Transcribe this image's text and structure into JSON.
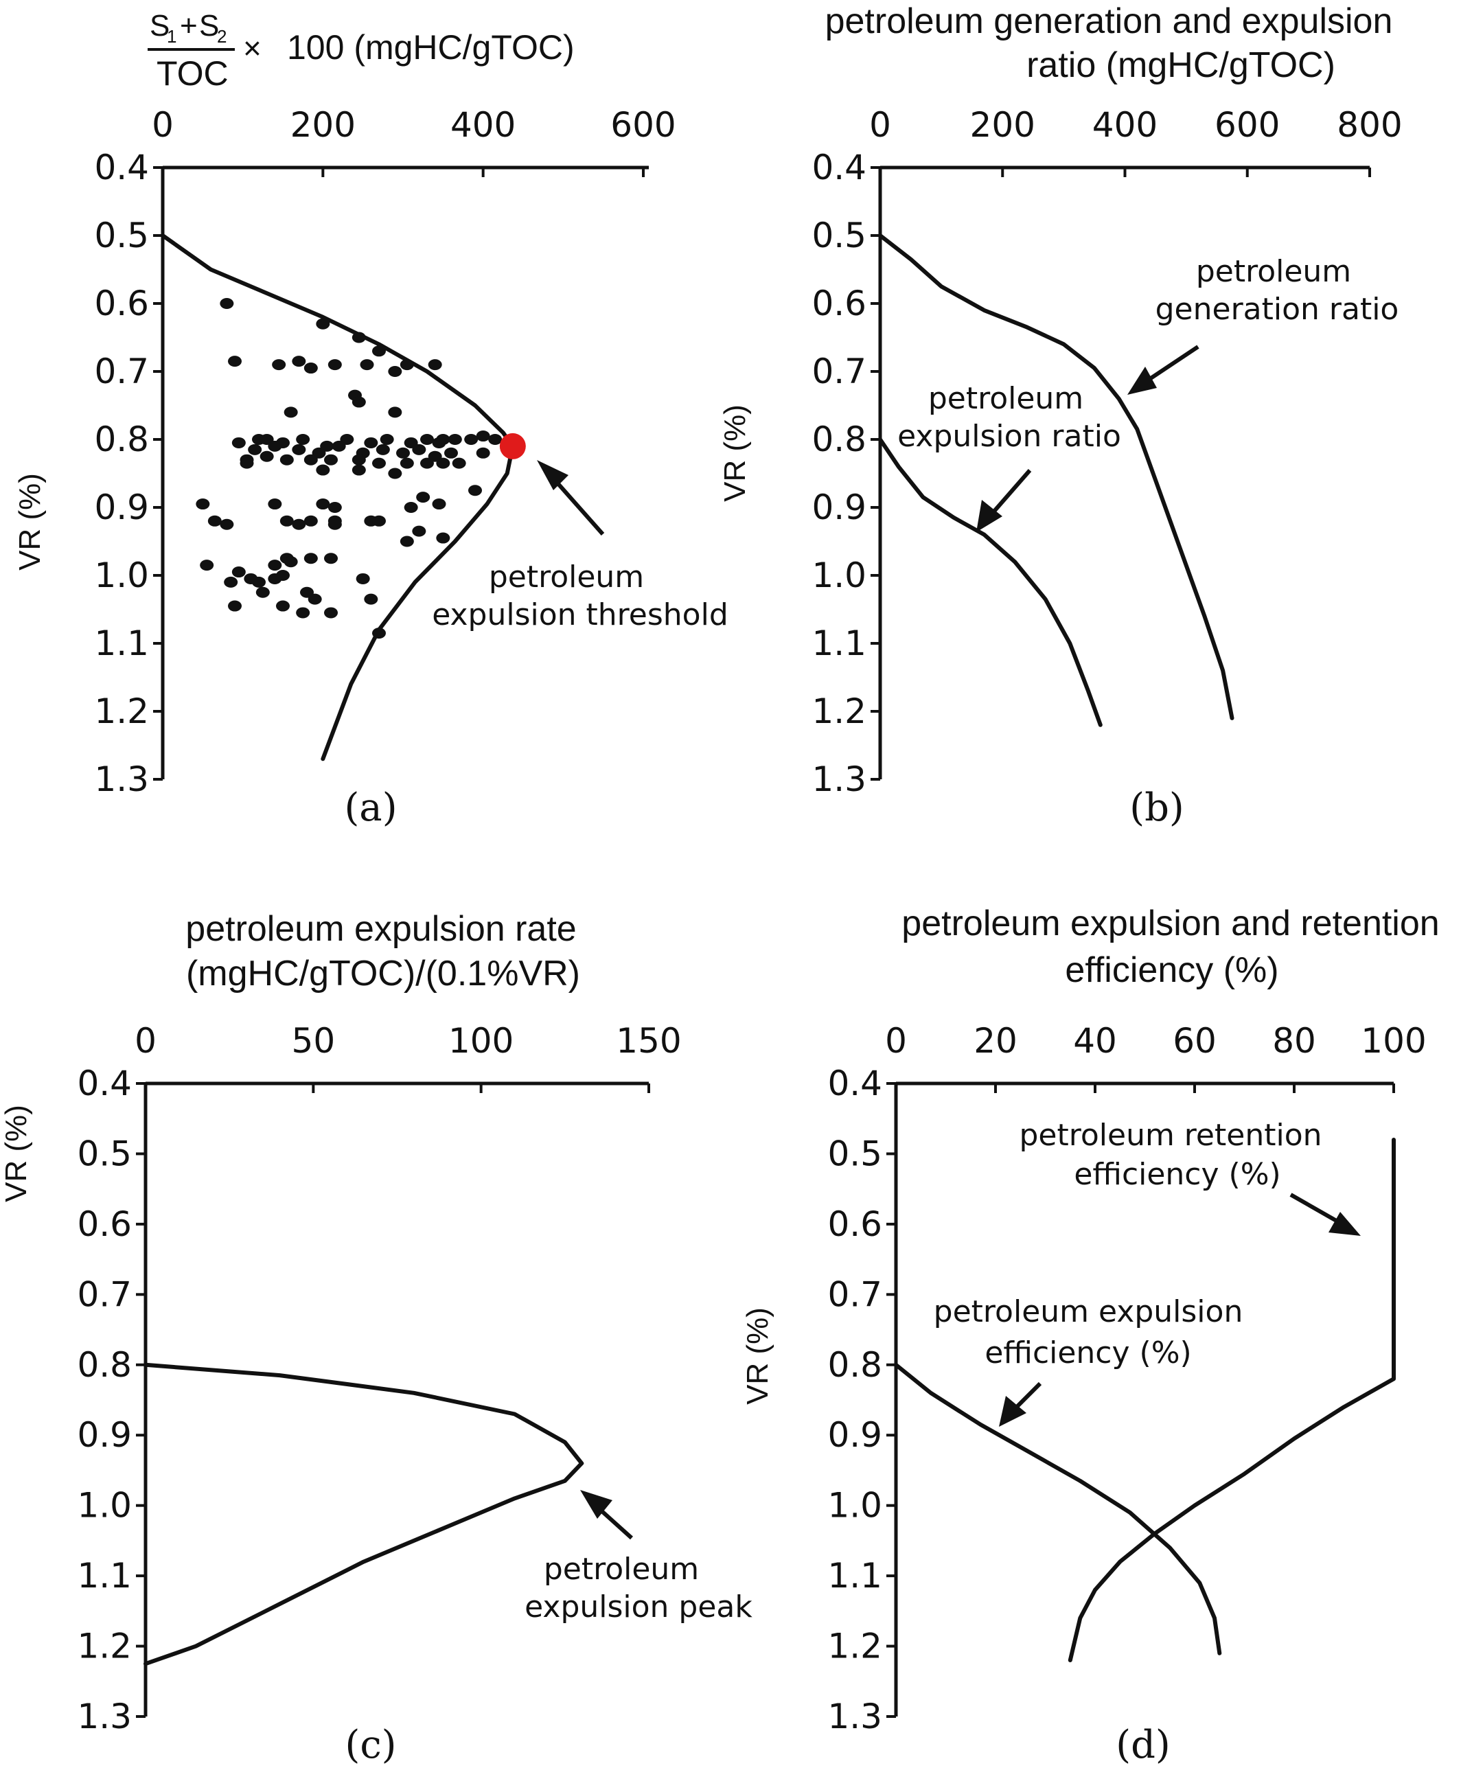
{
  "chart_data": [
    {
      "panel": "(a)",
      "type": "scatter",
      "title_formula": {
        "s1": "S",
        "s1_sub": "1",
        "plus": "+",
        "s2": "S",
        "s2_sub": "2",
        "toc": "TOC",
        "times": "×",
        "rest": "100 (mgHC/gTOC)"
      },
      "ylabel": "VR (%)",
      "xlim": [
        0,
        600
      ],
      "ylim": [
        0.4,
        1.3
      ],
      "xticks": [
        "0",
        "200",
        "400",
        "600"
      ],
      "yticks": [
        "0.4",
        "0.5",
        "0.6",
        "0.7",
        "0.8",
        "0.9",
        "1.0",
        "1.1",
        "1.2",
        "1.3"
      ],
      "envelope": [
        [
          0,
          0.5
        ],
        [
          60,
          0.55
        ],
        [
          130,
          0.585
        ],
        [
          200,
          0.62
        ],
        [
          270,
          0.66
        ],
        [
          330,
          0.7
        ],
        [
          390,
          0.75
        ],
        [
          425,
          0.79
        ],
        [
          437,
          0.81
        ],
        [
          430,
          0.85
        ],
        [
          405,
          0.895
        ],
        [
          365,
          0.95
        ],
        [
          315,
          1.01
        ],
        [
          270,
          1.08
        ],
        [
          235,
          1.16
        ],
        [
          200,
          1.27
        ]
      ],
      "points": [
        [
          80,
          0.6
        ],
        [
          200,
          0.63
        ],
        [
          245,
          0.65
        ],
        [
          270,
          0.67
        ],
        [
          305,
          0.69
        ],
        [
          340,
          0.69
        ],
        [
          90,
          0.685
        ],
        [
          145,
          0.69
        ],
        [
          170,
          0.685
        ],
        [
          185,
          0.695
        ],
        [
          215,
          0.69
        ],
        [
          255,
          0.69
        ],
        [
          290,
          0.7
        ],
        [
          240,
          0.735
        ],
        [
          245,
          0.745
        ],
        [
          160,
          0.76
        ],
        [
          290,
          0.76
        ],
        [
          400,
          0.795
        ],
        [
          415,
          0.8
        ],
        [
          120,
          0.8
        ],
        [
          130,
          0.8
        ],
        [
          150,
          0.805
        ],
        [
          175,
          0.8
        ],
        [
          205,
          0.81
        ],
        [
          230,
          0.8
        ],
        [
          260,
          0.805
        ],
        [
          280,
          0.8
        ],
        [
          310,
          0.805
        ],
        [
          330,
          0.8
        ],
        [
          345,
          0.805
        ],
        [
          350,
          0.8
        ],
        [
          365,
          0.8
        ],
        [
          385,
          0.8
        ],
        [
          95,
          0.805
        ],
        [
          115,
          0.815
        ],
        [
          140,
          0.81
        ],
        [
          170,
          0.815
        ],
        [
          195,
          0.82
        ],
        [
          220,
          0.81
        ],
        [
          250,
          0.82
        ],
        [
          275,
          0.815
        ],
        [
          300,
          0.82
        ],
        [
          320,
          0.815
        ],
        [
          340,
          0.825
        ],
        [
          360,
          0.82
        ],
        [
          400,
          0.82
        ],
        [
          105,
          0.83
        ],
        [
          130,
          0.825
        ],
        [
          155,
          0.83
        ],
        [
          185,
          0.83
        ],
        [
          210,
          0.83
        ],
        [
          245,
          0.83
        ],
        [
          270,
          0.835
        ],
        [
          305,
          0.835
        ],
        [
          330,
          0.835
        ],
        [
          350,
          0.835
        ],
        [
          370,
          0.835
        ],
        [
          105,
          0.835
        ],
        [
          290,
          0.85
        ],
        [
          245,
          0.845
        ],
        [
          200,
          0.845
        ],
        [
          390,
          0.875
        ],
        [
          50,
          0.895
        ],
        [
          140,
          0.895
        ],
        [
          200,
          0.895
        ],
        [
          215,
          0.9
        ],
        [
          310,
          0.9
        ],
        [
          325,
          0.885
        ],
        [
          345,
          0.895
        ],
        [
          65,
          0.92
        ],
        [
          80,
          0.925
        ],
        [
          155,
          0.92
        ],
        [
          170,
          0.925
        ],
        [
          185,
          0.92
        ],
        [
          215,
          0.92
        ],
        [
          215,
          0.925
        ],
        [
          260,
          0.92
        ],
        [
          270,
          0.92
        ],
        [
          320,
          0.935
        ],
        [
          350,
          0.945
        ],
        [
          305,
          0.95
        ],
        [
          55,
          0.985
        ],
        [
          95,
          0.995
        ],
        [
          140,
          0.985
        ],
        [
          155,
          0.975
        ],
        [
          160,
          0.98
        ],
        [
          185,
          0.975
        ],
        [
          210,
          0.975
        ],
        [
          140,
          1.005
        ],
        [
          120,
          1.01
        ],
        [
          110,
          1.005
        ],
        [
          150,
          1.0
        ],
        [
          85,
          1.01
        ],
        [
          250,
          1.005
        ],
        [
          125,
          1.025
        ],
        [
          180,
          1.025
        ],
        [
          190,
          1.035
        ],
        [
          90,
          1.045
        ],
        [
          150,
          1.045
        ],
        [
          175,
          1.055
        ],
        [
          210,
          1.055
        ],
        [
          260,
          1.035
        ],
        [
          270,
          1.085
        ]
      ],
      "threshold_point": [
        437,
        0.81
      ],
      "annotations": [
        "petroleum",
        "expulsion threshold"
      ]
    },
    {
      "panel": "(b)",
      "type": "line",
      "title": [
        "petroleum generation and expulsion",
        "ratio (mgHC/gTOC)"
      ],
      "ylabel": "VR (%)",
      "xlim": [
        0,
        800
      ],
      "ylim": [
        0.4,
        1.3
      ],
      "xticks": [
        "0",
        "200",
        "400",
        "600",
        "800"
      ],
      "yticks": [
        "0.4",
        "0.5",
        "0.6",
        "0.7",
        "0.8",
        "0.9",
        "1.0",
        "1.1",
        "1.2",
        "1.3"
      ],
      "series": [
        {
          "name": "petroleum generation ratio",
          "points": [
            [
              0,
              0.5
            ],
            [
              50,
              0.535
            ],
            [
              100,
              0.575
            ],
            [
              170,
              0.61
            ],
            [
              240,
              0.635
            ],
            [
              300,
              0.66
            ],
            [
              350,
              0.695
            ],
            [
              390,
              0.74
            ],
            [
              420,
              0.785
            ],
            [
              450,
              0.86
            ],
            [
              490,
              0.96
            ],
            [
              530,
              1.06
            ],
            [
              560,
              1.14
            ],
            [
              575,
              1.21
            ]
          ]
        },
        {
          "name": "petroleum expulsion ratio",
          "points": [
            [
              0,
              0.8
            ],
            [
              30,
              0.84
            ],
            [
              70,
              0.885
            ],
            [
              120,
              0.915
            ],
            [
              170,
              0.94
            ],
            [
              220,
              0.98
            ],
            [
              270,
              1.035
            ],
            [
              310,
              1.1
            ],
            [
              340,
              1.17
            ],
            [
              360,
              1.22
            ]
          ]
        }
      ],
      "annotations": [
        [
          "petroleum",
          "generation ratio"
        ],
        [
          "petroleum",
          "expulsion ratio"
        ]
      ]
    },
    {
      "panel": "(c)",
      "type": "line",
      "title": [
        "petroleum expulsion rate",
        "(mgHC/gTOC)/(0.1%VR)"
      ],
      "ylabel": "VR (%)",
      "xlim": [
        0,
        150
      ],
      "ylim": [
        0.4,
        1.3
      ],
      "xticks": [
        "0",
        "50",
        "100",
        "150"
      ],
      "yticks": [
        "0.4",
        "0.5",
        "0.6",
        "0.7",
        "0.8",
        "0.9",
        "1.0",
        "1.1",
        "1.2",
        "1.3"
      ],
      "series": [
        {
          "name": "petroleum expulsion rate",
          "points": [
            [
              0,
              0.8
            ],
            [
              40,
              0.815
            ],
            [
              80,
              0.84
            ],
            [
              110,
              0.87
            ],
            [
              125,
              0.91
            ],
            [
              130,
              0.94
            ],
            [
              125,
              0.965
            ],
            [
              110,
              0.99
            ],
            [
              90,
              1.03
            ],
            [
              65,
              1.08
            ],
            [
              40,
              1.14
            ],
            [
              15,
              1.2
            ],
            [
              0,
              1.225
            ]
          ]
        }
      ],
      "annotations": [
        "petroleum",
        "expulsion peak"
      ]
    },
    {
      "panel": "(d)",
      "type": "line",
      "title": [
        "petroleum expulsion and retention",
        "efficiency (%)"
      ],
      "ylabel": "VR (%)",
      "xlim": [
        0,
        100
      ],
      "ylim": [
        0.4,
        1.3
      ],
      "xticks": [
        "0",
        "20",
        "40",
        "60",
        "80",
        "100"
      ],
      "yticks": [
        "0.4",
        "0.5",
        "0.6",
        "0.7",
        "0.8",
        "0.9",
        "1.0",
        "1.1",
        "1.2",
        "1.3"
      ],
      "series": [
        {
          "name": "petroleum retention efficiency (%)",
          "points": [
            [
              100,
              0.48
            ],
            [
              100,
              0.82
            ],
            [
              90,
              0.86
            ],
            [
              80,
              0.905
            ],
            [
              70,
              0.955
            ],
            [
              60,
              1.0
            ],
            [
              52,
              1.04
            ],
            [
              45,
              1.08
            ],
            [
              40,
              1.12
            ],
            [
              37,
              1.16
            ],
            [
              35,
              1.22
            ]
          ]
        },
        {
          "name": "petroleum expulsion efficiency (%)",
          "points": [
            [
              0,
              0.8
            ],
            [
              7,
              0.84
            ],
            [
              17,
              0.885
            ],
            [
              27,
              0.925
            ],
            [
              37,
              0.965
            ],
            [
              47,
              1.01
            ],
            [
              55,
              1.06
            ],
            [
              61,
              1.11
            ],
            [
              64,
              1.16
            ],
            [
              65,
              1.21
            ]
          ]
        }
      ],
      "annotations": [
        [
          "petroleum  retention",
          "efficiency (%)"
        ],
        [
          "petroleum expulsion",
          "efficiency (%)"
        ]
      ]
    }
  ]
}
